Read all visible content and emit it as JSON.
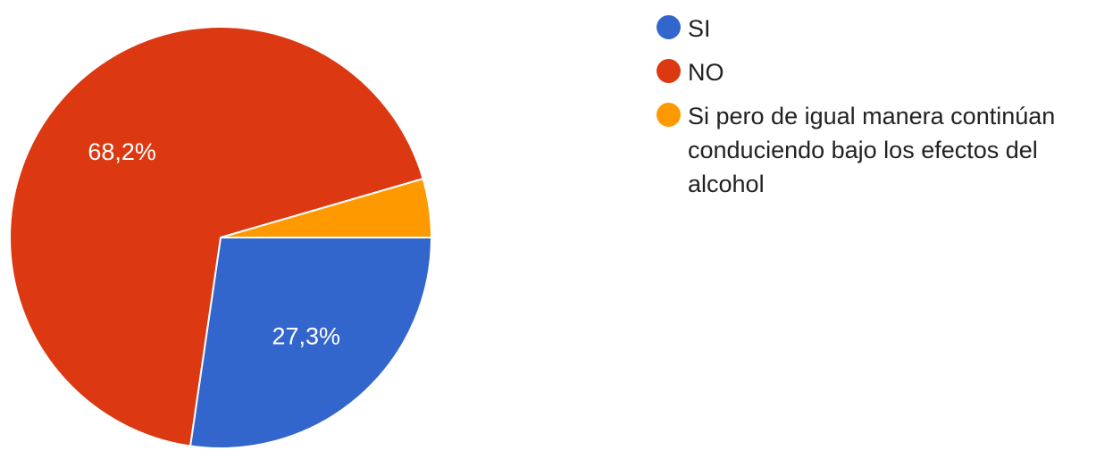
{
  "chart_data": {
    "type": "pie",
    "title": "",
    "legend_position": "right",
    "slices": [
      {
        "label": "SI",
        "value": 27.3,
        "display": "27,3%",
        "color": "#3366cc",
        "show_label": true
      },
      {
        "label": "NO",
        "value": 68.2,
        "display": "68,2%",
        "color": "#dc3912",
        "show_label": true
      },
      {
        "label": "Si pero de igual manera continúan conduciendo bajo los efectos del alcohol",
        "value": 4.5,
        "display": "",
        "color": "#ff9900",
        "show_label": false
      }
    ]
  }
}
